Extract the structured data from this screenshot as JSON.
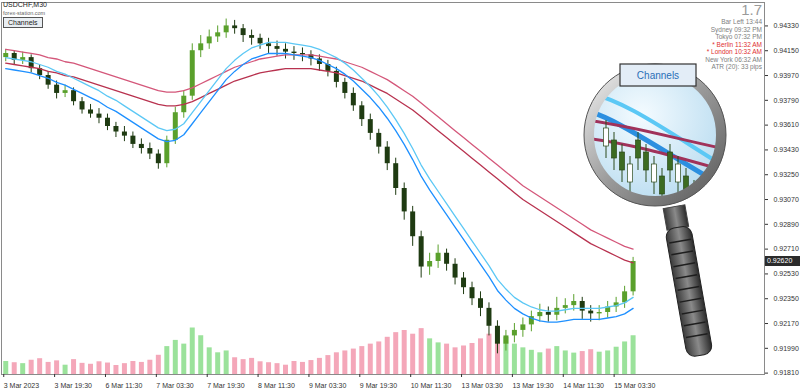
{
  "chart_data": {
    "type": "candlestick",
    "title": "USDCHF,M30",
    "subtitle": "forex-station.com",
    "button": "Channels",
    "lens_label": "Channels",
    "grid": false,
    "categories": [
      "3 Mar 2023",
      null,
      null,
      null,
      null,
      null,
      "3 Mar 19:30",
      null,
      null,
      null,
      null,
      null,
      "6 Mar 11:30",
      null,
      null,
      null,
      null,
      null,
      "7 Mar 03:30",
      null,
      null,
      null,
      null,
      null,
      "7 Mar 19:30",
      null,
      null,
      null,
      null,
      null,
      "8 Mar 11:30",
      null,
      null,
      null,
      null,
      null,
      "9 Mar 03:30",
      null,
      null,
      null,
      null,
      null,
      "9 Mar 19:30",
      null,
      null,
      null,
      null,
      null,
      "10 Mar 11:30",
      null,
      null,
      null,
      null,
      null,
      "13 Mar 03:30",
      null,
      null,
      null,
      null,
      null,
      "13 Mar 19:30",
      null,
      null,
      null,
      null,
      null,
      "14 Mar 11:30",
      null,
      null,
      null,
      null,
      null,
      "15 Mar 03:30",
      null,
      null,
      null,
      null,
      null,
      null,
      null,
      null,
      null,
      null,
      null,
      null,
      null,
      null,
      null,
      null,
      null
    ],
    "open": [
      0.941,
      0.9413,
      0.9408,
      0.941,
      0.9402,
      0.9397,
      0.939,
      0.9384,
      0.9386,
      0.9378,
      0.9372,
      0.9369,
      0.9366,
      0.936,
      0.9356,
      0.9353,
      0.9347,
      0.9344,
      0.934,
      0.9333,
      0.935,
      0.937,
      0.9382,
      0.9415,
      0.942,
      0.9425,
      0.9428,
      0.9433,
      0.9431,
      0.9426,
      0.9424,
      0.942,
      0.9418,
      0.9416,
      0.9414,
      0.9413,
      0.9412,
      0.9409,
      0.9405,
      0.94,
      0.9392,
      0.9384,
      0.9375,
      0.9365,
      0.9355,
      0.9345,
      0.9333,
      0.9315,
      0.9298,
      0.928,
      0.9258,
      0.9262,
      0.9268,
      0.926,
      0.925,
      0.9243,
      0.9235,
      0.9228,
      0.9215,
      0.9202,
      0.9208,
      0.9212,
      0.9216,
      0.9222,
      0.9225,
      0.9223,
      0.9228,
      0.923,
      0.9233,
      0.9226,
      0.9224,
      0.9225,
      0.9229,
      0.9232,
      0.924,
      null,
      null,
      null,
      null,
      null,
      null,
      null,
      null,
      null,
      null,
      null,
      null,
      null,
      null,
      null
    ],
    "high": [
      0.9416,
      0.9415,
      0.9414,
      0.9412,
      0.9405,
      0.94,
      0.9393,
      0.939,
      0.9388,
      0.9381,
      0.9376,
      0.9373,
      0.9369,
      0.9363,
      0.936,
      0.9356,
      0.9351,
      0.9348,
      0.9343,
      0.9353,
      0.9374,
      0.9386,
      0.942,
      0.9426,
      0.943,
      0.9433,
      0.9438,
      0.9437,
      0.9434,
      0.943,
      0.9427,
      0.9424,
      0.9422,
      0.942,
      0.9418,
      0.9417,
      0.9415,
      0.9412,
      0.9408,
      0.9403,
      0.9395,
      0.9388,
      0.9378,
      0.9369,
      0.9358,
      0.9349,
      0.9337,
      0.9319,
      0.9302,
      0.9284,
      0.9268,
      0.9274,
      0.9271,
      0.9264,
      0.9254,
      0.9247,
      0.924,
      0.9232,
      0.9219,
      0.9212,
      0.9217,
      0.9221,
      0.9226,
      0.9231,
      0.9229,
      0.9236,
      0.9235,
      0.9238,
      0.9236,
      0.923,
      0.923,
      0.9233,
      0.9236,
      0.9244,
      0.9265,
      null,
      null,
      null,
      null,
      null,
      null,
      null,
      null,
      null,
      null,
      null,
      null,
      null,
      null,
      null
    ],
    "low": [
      0.9407,
      0.9405,
      0.9405,
      0.9399,
      0.9394,
      0.9387,
      0.938,
      0.9381,
      0.9375,
      0.9369,
      0.9366,
      0.9362,
      0.9357,
      0.9352,
      0.9349,
      0.9344,
      0.934,
      0.9336,
      0.9329,
      0.933,
      0.9347,
      0.9366,
      0.9379,
      0.941,
      0.9416,
      0.9421,
      0.9424,
      0.9427,
      0.9421,
      0.9419,
      0.9416,
      0.9413,
      0.9411,
      0.9409,
      0.9408,
      0.9407,
      0.9404,
      0.94,
      0.9396,
      0.9388,
      0.938,
      0.9371,
      0.936,
      0.935,
      0.934,
      0.9328,
      0.931,
      0.9292,
      0.9273,
      0.925,
      0.9252,
      0.9257,
      0.9255,
      0.9245,
      0.9238,
      0.923,
      0.9222,
      0.9208,
      0.9195,
      0.9197,
      0.9203,
      0.9207,
      0.9211,
      0.9218,
      0.9218,
      0.9219,
      0.9224,
      0.9226,
      0.922,
      0.9218,
      0.9219,
      0.9221,
      0.9225,
      0.9228,
      0.9237,
      null,
      null,
      null,
      null,
      null,
      null,
      null,
      null,
      null,
      null,
      null,
      null,
      null,
      null,
      null
    ],
    "close": [
      0.9413,
      0.9408,
      0.941,
      0.9402,
      0.9397,
      0.939,
      0.9384,
      0.9386,
      0.9378,
      0.9372,
      0.9369,
      0.9366,
      0.936,
      0.9356,
      0.9353,
      0.9347,
      0.9344,
      0.934,
      0.9333,
      0.935,
      0.937,
      0.9382,
      0.9415,
      0.942,
      0.9425,
      0.9428,
      0.9433,
      0.9431,
      0.9426,
      0.9424,
      0.942,
      0.9418,
      0.9416,
      0.9414,
      0.9413,
      0.9412,
      0.9409,
      0.9405,
      0.94,
      0.9392,
      0.9384,
      0.9375,
      0.9365,
      0.9355,
      0.9345,
      0.9333,
      0.9315,
      0.9298,
      0.928,
      0.9258,
      0.9262,
      0.9268,
      0.926,
      0.925,
      0.9243,
      0.9235,
      0.9228,
      0.9215,
      0.9202,
      0.9208,
      0.9212,
      0.9216,
      0.9222,
      0.9225,
      0.9223,
      0.9228,
      0.923,
      0.9233,
      0.9226,
      0.9224,
      0.9225,
      0.9229,
      0.9232,
      0.924,
      0.9262,
      null,
      null,
      null,
      null,
      null,
      null,
      null,
      null,
      null,
      null,
      null,
      null,
      null,
      null,
      null
    ],
    "volume": [
      420,
      380,
      350,
      460,
      510,
      390,
      440,
      300,
      480,
      360,
      330,
      410,
      370,
      290,
      350,
      420,
      390,
      460,
      620,
      900,
      1100,
      980,
      1500,
      1250,
      860,
      700,
      760,
      540,
      480,
      520,
      410,
      380,
      350,
      300,
      420,
      390,
      450,
      520,
      610,
      700,
      760,
      820,
      900,
      980,
      1050,
      1200,
      1350,
      1420,
      1300,
      1480,
      1150,
      1020,
      980,
      860,
      920,
      1000,
      1150,
      1300,
      1450,
      1200,
      980,
      860,
      780,
      700,
      820,
      900,
      760,
      690,
      740,
      800,
      720,
      760,
      880,
      1050,
      1250,
      null,
      null,
      null,
      null,
      null,
      null,
      null,
      null,
      null,
      null,
      null,
      null,
      null,
      null,
      null
    ],
    "volume_lim": [
      0,
      12000
    ],
    "series": [
      {
        "color": "#d4577a",
        "values": [
          0.9416,
          0.9415,
          0.9414,
          0.9413,
          0.9412,
          0.941,
          0.9409,
          0.9407,
          0.9406,
          0.9404,
          0.9402,
          0.94,
          0.9398,
          0.9396,
          0.9394,
          0.9392,
          0.939,
          0.9388,
          0.9386,
          0.9385,
          0.9385,
          0.9386,
          0.9388,
          0.9391,
          0.9394,
          0.9397,
          0.94,
          0.9403,
          0.9405,
          0.9407,
          0.9409,
          0.941,
          0.9411,
          0.9412,
          0.9412,
          0.9412,
          0.9412,
          0.9411,
          0.941,
          0.9409,
          0.9407,
          0.9405,
          0.9403,
          0.94,
          0.9397,
          0.9394,
          0.939,
          0.9386,
          0.9382,
          0.9377,
          0.9372,
          0.9367,
          0.9362,
          0.9357,
          0.9352,
          0.9347,
          0.9342,
          0.9337,
          0.9332,
          0.9327,
          0.9322,
          0.9317,
          0.9313,
          0.9309,
          0.9305,
          0.9301,
          0.9297,
          0.9293,
          0.9289,
          0.9285,
          0.9282,
          0.9279,
          0.9276,
          0.9273,
          0.9271,
          null,
          null,
          null,
          null,
          null,
          null,
          null,
          null,
          null,
          null,
          null,
          null,
          null,
          null,
          null
        ]
      },
      {
        "color": "#b8324f",
        "values": [
          0.9406,
          0.9405,
          0.9404,
          0.9403,
          0.9402,
          0.94,
          0.9399,
          0.9397,
          0.9396,
          0.9394,
          0.9392,
          0.939,
          0.9388,
          0.9386,
          0.9384,
          0.9382,
          0.938,
          0.9378,
          0.9376,
          0.9375,
          0.9375,
          0.9376,
          0.9378,
          0.9381,
          0.9384,
          0.9387,
          0.939,
          0.9393,
          0.9395,
          0.9397,
          0.9399,
          0.94,
          0.9401,
          0.9402,
          0.9402,
          0.9402,
          0.9402,
          0.9401,
          0.94,
          0.9399,
          0.9397,
          0.9395,
          0.9393,
          0.939,
          0.9387,
          0.9384,
          0.938,
          0.9376,
          0.9372,
          0.9367,
          0.9362,
          0.9357,
          0.9352,
          0.9347,
          0.9342,
          0.9337,
          0.9332,
          0.9327,
          0.9322,
          0.9317,
          0.9312,
          0.9307,
          0.9303,
          0.9299,
          0.9295,
          0.9291,
          0.9287,
          0.9283,
          0.9279,
          0.9275,
          0.9272,
          0.9269,
          0.9266,
          0.9263,
          0.9261,
          null,
          null,
          null,
          null,
          null,
          null,
          null,
          null,
          null,
          null,
          null,
          null,
          null,
          null,
          null
        ]
      },
      {
        "color": "#5cc8f5",
        "values": [
          0.941,
          0.9409,
          0.9408,
          0.9407,
          0.9405,
          0.9403,
          0.94,
          0.9398,
          0.9395,
          0.9392,
          0.9389,
          0.9386,
          0.9382,
          0.9379,
          0.9375,
          0.9371,
          0.9367,
          0.9363,
          0.9359,
          0.9357,
          0.9358,
          0.9362,
          0.937,
          0.9378,
          0.9386,
          0.9394,
          0.9402,
          0.9408,
          0.9413,
          0.9417,
          0.9419,
          0.9421,
          0.9421,
          0.9421,
          0.942,
          0.9419,
          0.9418,
          0.9416,
          0.9413,
          0.941,
          0.9406,
          0.9401,
          0.9395,
          0.9389,
          0.9382,
          0.9374,
          0.9365,
          0.9355,
          0.9344,
          0.9332,
          0.9322,
          0.9313,
          0.9304,
          0.9295,
          0.9286,
          0.9277,
          0.9268,
          0.9259,
          0.9249,
          0.9242,
          0.9236,
          0.9232,
          0.9229,
          0.9227,
          0.9226,
          0.9226,
          0.9227,
          0.9228,
          0.9228,
          0.9228,
          0.9228,
          0.9229,
          0.923,
          0.9232,
          0.9236,
          null,
          null,
          null,
          null,
          null,
          null,
          null,
          null,
          null,
          null,
          null,
          null,
          null,
          null,
          null
        ]
      },
      {
        "color": "#1e90ff",
        "values": [
          0.9402,
          0.9401,
          0.94,
          0.9399,
          0.9397,
          0.9395,
          0.9392,
          0.939,
          0.9387,
          0.9384,
          0.9381,
          0.9378,
          0.9374,
          0.9371,
          0.9367,
          0.9363,
          0.9359,
          0.9355,
          0.9351,
          0.9349,
          0.935,
          0.9354,
          0.9362,
          0.937,
          0.9378,
          0.9386,
          0.9394,
          0.94,
          0.9405,
          0.9409,
          0.9411,
          0.9413,
          0.9413,
          0.9413,
          0.9412,
          0.9411,
          0.941,
          0.9408,
          0.9405,
          0.9402,
          0.9398,
          0.9393,
          0.9387,
          0.9381,
          0.9374,
          0.9366,
          0.9357,
          0.9347,
          0.9336,
          0.9324,
          0.9314,
          0.9305,
          0.9296,
          0.9287,
          0.9278,
          0.9269,
          0.926,
          0.9251,
          0.9241,
          0.9234,
          0.9228,
          0.9224,
          0.9221,
          0.9219,
          0.9218,
          0.9218,
          0.9219,
          0.922,
          0.922,
          0.922,
          0.922,
          0.9221,
          0.9222,
          0.9224,
          0.9228,
          null,
          null,
          null,
          null,
          null,
          null,
          null,
          null,
          null,
          null,
          null,
          null,
          null,
          null,
          null
        ]
      }
    ],
    "ylim": [
      0.918,
      0.945
    ],
    "yticks": [
      {
        "value": 0.9181,
        "label": "0.91810"
      },
      {
        "value": 0.9199,
        "label": "0.91990"
      },
      {
        "value": 0.9217,
        "label": "0.92170"
      },
      {
        "value": 0.9235,
        "label": "0.92350"
      },
      {
        "value": 0.9253,
        "label": "0.92530"
      },
      {
        "value": 0.9271,
        "label": "0.92710"
      },
      {
        "value": 0.9289,
        "label": "0.92890"
      },
      {
        "value": 0.9307,
        "label": "0.93070"
      },
      {
        "value": 0.9325,
        "label": "0.93250"
      },
      {
        "value": 0.9343,
        "label": "0.93430"
      },
      {
        "value": 0.9361,
        "label": "0.93610"
      },
      {
        "value": 0.9379,
        "label": "0.93790"
      },
      {
        "value": 0.9397,
        "label": "0.93970"
      },
      {
        "value": 0.9415,
        "label": "0.94150"
      },
      {
        "value": 0.9433,
        "label": "0.94330"
      }
    ],
    "last_price": {
      "value": 0.9262,
      "label": "0.92620"
    },
    "info_panel": {
      "spread": 1.7,
      "lines": [
        {
          "text": "Bar Left 13:44",
          "color": "#808080"
        },
        {
          "text": "Sydney 09:32 PM",
          "color": "#808080"
        },
        {
          "text": "Tokyo 07:32 PM",
          "color": "#808080"
        },
        {
          "text": "* Berlin 11:32 AM",
          "color": "#e03030"
        },
        {
          "text": "* London 10:32 AM",
          "color": "#e03030"
        },
        {
          "text": "New York 06:32 AM",
          "color": "#808080"
        },
        {
          "text": "ATR (20): 33 pips",
          "color": "#808080"
        }
      ]
    }
  }
}
